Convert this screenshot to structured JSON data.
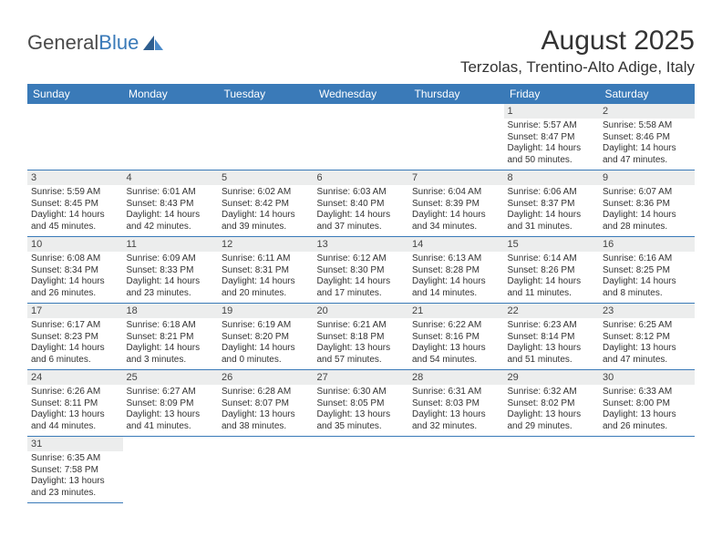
{
  "logo": {
    "text_a": "General",
    "text_b": "Blue"
  },
  "title": "August 2025",
  "location": "Terzolas, Trentino-Alto Adige, Italy",
  "colors": {
    "header_bg": "#3a7ab8",
    "header_fg": "#ffffff",
    "daynum_bg": "#eceded",
    "border": "#3a7ab8",
    "text": "#333333"
  },
  "dayNames": [
    "Sunday",
    "Monday",
    "Tuesday",
    "Wednesday",
    "Thursday",
    "Friday",
    "Saturday"
  ],
  "startOffset": 5,
  "days": [
    {
      "n": 1,
      "sr": "5:57 AM",
      "ss": "8:47 PM",
      "dl": "14 hours and 50 minutes."
    },
    {
      "n": 2,
      "sr": "5:58 AM",
      "ss": "8:46 PM",
      "dl": "14 hours and 47 minutes."
    },
    {
      "n": 3,
      "sr": "5:59 AM",
      "ss": "8:45 PM",
      "dl": "14 hours and 45 minutes."
    },
    {
      "n": 4,
      "sr": "6:01 AM",
      "ss": "8:43 PM",
      "dl": "14 hours and 42 minutes."
    },
    {
      "n": 5,
      "sr": "6:02 AM",
      "ss": "8:42 PM",
      "dl": "14 hours and 39 minutes."
    },
    {
      "n": 6,
      "sr": "6:03 AM",
      "ss": "8:40 PM",
      "dl": "14 hours and 37 minutes."
    },
    {
      "n": 7,
      "sr": "6:04 AM",
      "ss": "8:39 PM",
      "dl": "14 hours and 34 minutes."
    },
    {
      "n": 8,
      "sr": "6:06 AM",
      "ss": "8:37 PM",
      "dl": "14 hours and 31 minutes."
    },
    {
      "n": 9,
      "sr": "6:07 AM",
      "ss": "8:36 PM",
      "dl": "14 hours and 28 minutes."
    },
    {
      "n": 10,
      "sr": "6:08 AM",
      "ss": "8:34 PM",
      "dl": "14 hours and 26 minutes."
    },
    {
      "n": 11,
      "sr": "6:09 AM",
      "ss": "8:33 PM",
      "dl": "14 hours and 23 minutes."
    },
    {
      "n": 12,
      "sr": "6:11 AM",
      "ss": "8:31 PM",
      "dl": "14 hours and 20 minutes."
    },
    {
      "n": 13,
      "sr": "6:12 AM",
      "ss": "8:30 PM",
      "dl": "14 hours and 17 minutes."
    },
    {
      "n": 14,
      "sr": "6:13 AM",
      "ss": "8:28 PM",
      "dl": "14 hours and 14 minutes."
    },
    {
      "n": 15,
      "sr": "6:14 AM",
      "ss": "8:26 PM",
      "dl": "14 hours and 11 minutes."
    },
    {
      "n": 16,
      "sr": "6:16 AM",
      "ss": "8:25 PM",
      "dl": "14 hours and 8 minutes."
    },
    {
      "n": 17,
      "sr": "6:17 AM",
      "ss": "8:23 PM",
      "dl": "14 hours and 6 minutes."
    },
    {
      "n": 18,
      "sr": "6:18 AM",
      "ss": "8:21 PM",
      "dl": "14 hours and 3 minutes."
    },
    {
      "n": 19,
      "sr": "6:19 AM",
      "ss": "8:20 PM",
      "dl": "14 hours and 0 minutes."
    },
    {
      "n": 20,
      "sr": "6:21 AM",
      "ss": "8:18 PM",
      "dl": "13 hours and 57 minutes."
    },
    {
      "n": 21,
      "sr": "6:22 AM",
      "ss": "8:16 PM",
      "dl": "13 hours and 54 minutes."
    },
    {
      "n": 22,
      "sr": "6:23 AM",
      "ss": "8:14 PM",
      "dl": "13 hours and 51 minutes."
    },
    {
      "n": 23,
      "sr": "6:25 AM",
      "ss": "8:12 PM",
      "dl": "13 hours and 47 minutes."
    },
    {
      "n": 24,
      "sr": "6:26 AM",
      "ss": "8:11 PM",
      "dl": "13 hours and 44 minutes."
    },
    {
      "n": 25,
      "sr": "6:27 AM",
      "ss": "8:09 PM",
      "dl": "13 hours and 41 minutes."
    },
    {
      "n": 26,
      "sr": "6:28 AM",
      "ss": "8:07 PM",
      "dl": "13 hours and 38 minutes."
    },
    {
      "n": 27,
      "sr": "6:30 AM",
      "ss": "8:05 PM",
      "dl": "13 hours and 35 minutes."
    },
    {
      "n": 28,
      "sr": "6:31 AM",
      "ss": "8:03 PM",
      "dl": "13 hours and 32 minutes."
    },
    {
      "n": 29,
      "sr": "6:32 AM",
      "ss": "8:02 PM",
      "dl": "13 hours and 29 minutes."
    },
    {
      "n": 30,
      "sr": "6:33 AM",
      "ss": "8:00 PM",
      "dl": "13 hours and 26 minutes."
    },
    {
      "n": 31,
      "sr": "6:35 AM",
      "ss": "7:58 PM",
      "dl": "13 hours and 23 minutes."
    }
  ],
  "labels": {
    "sunrise": "Sunrise:",
    "sunset": "Sunset:",
    "daylight": "Daylight:"
  }
}
